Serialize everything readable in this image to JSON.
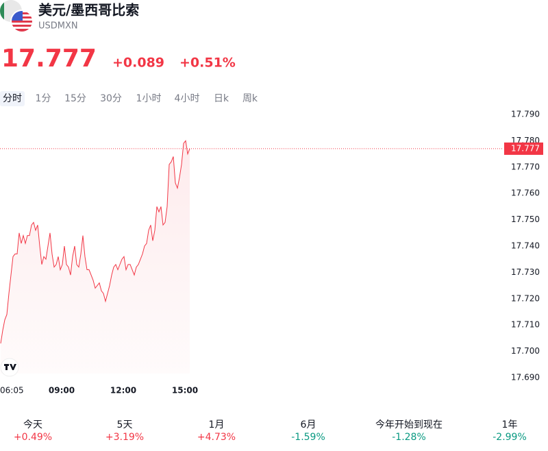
{
  "header": {
    "title": "美元/墨西哥比索",
    "symbol": "USDMXN",
    "price": "17.777",
    "change": "+0.089",
    "change_pct": "+0.51%"
  },
  "tabs": [
    "分时",
    "1分",
    "15分",
    "30分",
    "1小时",
    "4小时",
    "日k",
    "周k"
  ],
  "active_tab": 0,
  "chart_data": {
    "type": "line",
    "color": "#f23645",
    "x": [
      362,
      368,
      374,
      380,
      386,
      392,
      398,
      404,
      410,
      416,
      422,
      428,
      434,
      440,
      446,
      452,
      458,
      464,
      470,
      476,
      482,
      488,
      494,
      500,
      506,
      512,
      518,
      524,
      530,
      536,
      542,
      548,
      554,
      560,
      566,
      572,
      578,
      584,
      590,
      596,
      602,
      608,
      614,
      620,
      626,
      632,
      638,
      644,
      650,
      656,
      662,
      668,
      674,
      680,
      686,
      692,
      698,
      704,
      710,
      716,
      722,
      728,
      734,
      740,
      746,
      752,
      758,
      764,
      770,
      776,
      782,
      788,
      794,
      800,
      806,
      812,
      818,
      824,
      830,
      836,
      842,
      848,
      854,
      860,
      866,
      872,
      878,
      884,
      890,
      896,
      902,
      908,
      914
    ],
    "values": [
      17.703,
      17.708,
      17.712,
      17.714,
      17.722,
      17.729,
      17.736,
      17.737,
      17.737,
      17.745,
      17.741,
      17.744,
      17.741,
      17.744,
      17.744,
      17.748,
      17.749,
      17.746,
      17.748,
      17.74,
      17.733,
      17.736,
      17.735,
      17.74,
      17.745,
      17.737,
      17.732,
      17.733,
      17.736,
      17.731,
      17.733,
      17.74,
      17.733,
      17.732,
      17.729,
      17.736,
      17.74,
      17.733,
      17.732,
      17.737,
      17.744,
      17.736,
      17.731,
      17.731,
      17.729,
      17.727,
      17.724,
      17.725,
      17.726,
      17.723,
      17.722,
      17.719,
      17.722,
      17.725,
      17.729,
      17.732,
      17.733,
      17.731,
      17.733,
      17.735,
      17.736,
      17.731,
      17.733,
      17.733,
      17.731,
      17.729,
      17.732,
      17.733,
      17.735,
      17.737,
      17.74,
      17.741,
      17.746,
      17.748,
      17.742,
      17.746,
      17.755,
      17.753,
      17.755,
      17.748,
      17.749,
      17.755,
      17.771,
      17.772,
      17.774,
      17.764,
      17.762,
      17.766,
      17.771,
      17.779,
      17.78,
      17.775,
      17.777
    ],
    "last_value": 17.777,
    "xlim": [
      360,
      1830
    ],
    "xticks": [
      {
        "value": 365,
        "label": "06:05"
      },
      {
        "value": 540,
        "label": "09:00"
      },
      {
        "value": 720,
        "label": "12:00"
      },
      {
        "value": 900,
        "label": "15:00"
      }
    ],
    "ylim": [
      17.69,
      17.79
    ],
    "yticks": [
      {
        "value": 17.69,
        "label": "17.690"
      },
      {
        "value": 17.7,
        "label": "17.700"
      },
      {
        "value": 17.71,
        "label": "17.710"
      },
      {
        "value": 17.72,
        "label": "17.720"
      },
      {
        "value": 17.73,
        "label": "17.730"
      },
      {
        "value": 17.74,
        "label": "17.740"
      },
      {
        "value": 17.75,
        "label": "17.750"
      },
      {
        "value": 17.76,
        "label": "17.760"
      },
      {
        "value": 17.77,
        "label": "17.770"
      },
      {
        "value": 17.78,
        "label": "17.780"
      },
      {
        "value": 17.79,
        "label": "17.790"
      }
    ]
  },
  "performance": [
    {
      "label": "今天",
      "value": "+0.49%"
    },
    {
      "label": "5天",
      "value": "+3.19%"
    },
    {
      "label": "1月",
      "value": "+4.73%"
    },
    {
      "label": "6月",
      "value": "-1.59%"
    },
    {
      "label": "今年开始到现在",
      "value": "-1.28%"
    },
    {
      "label": "1年",
      "value": "-2.99%"
    }
  ]
}
